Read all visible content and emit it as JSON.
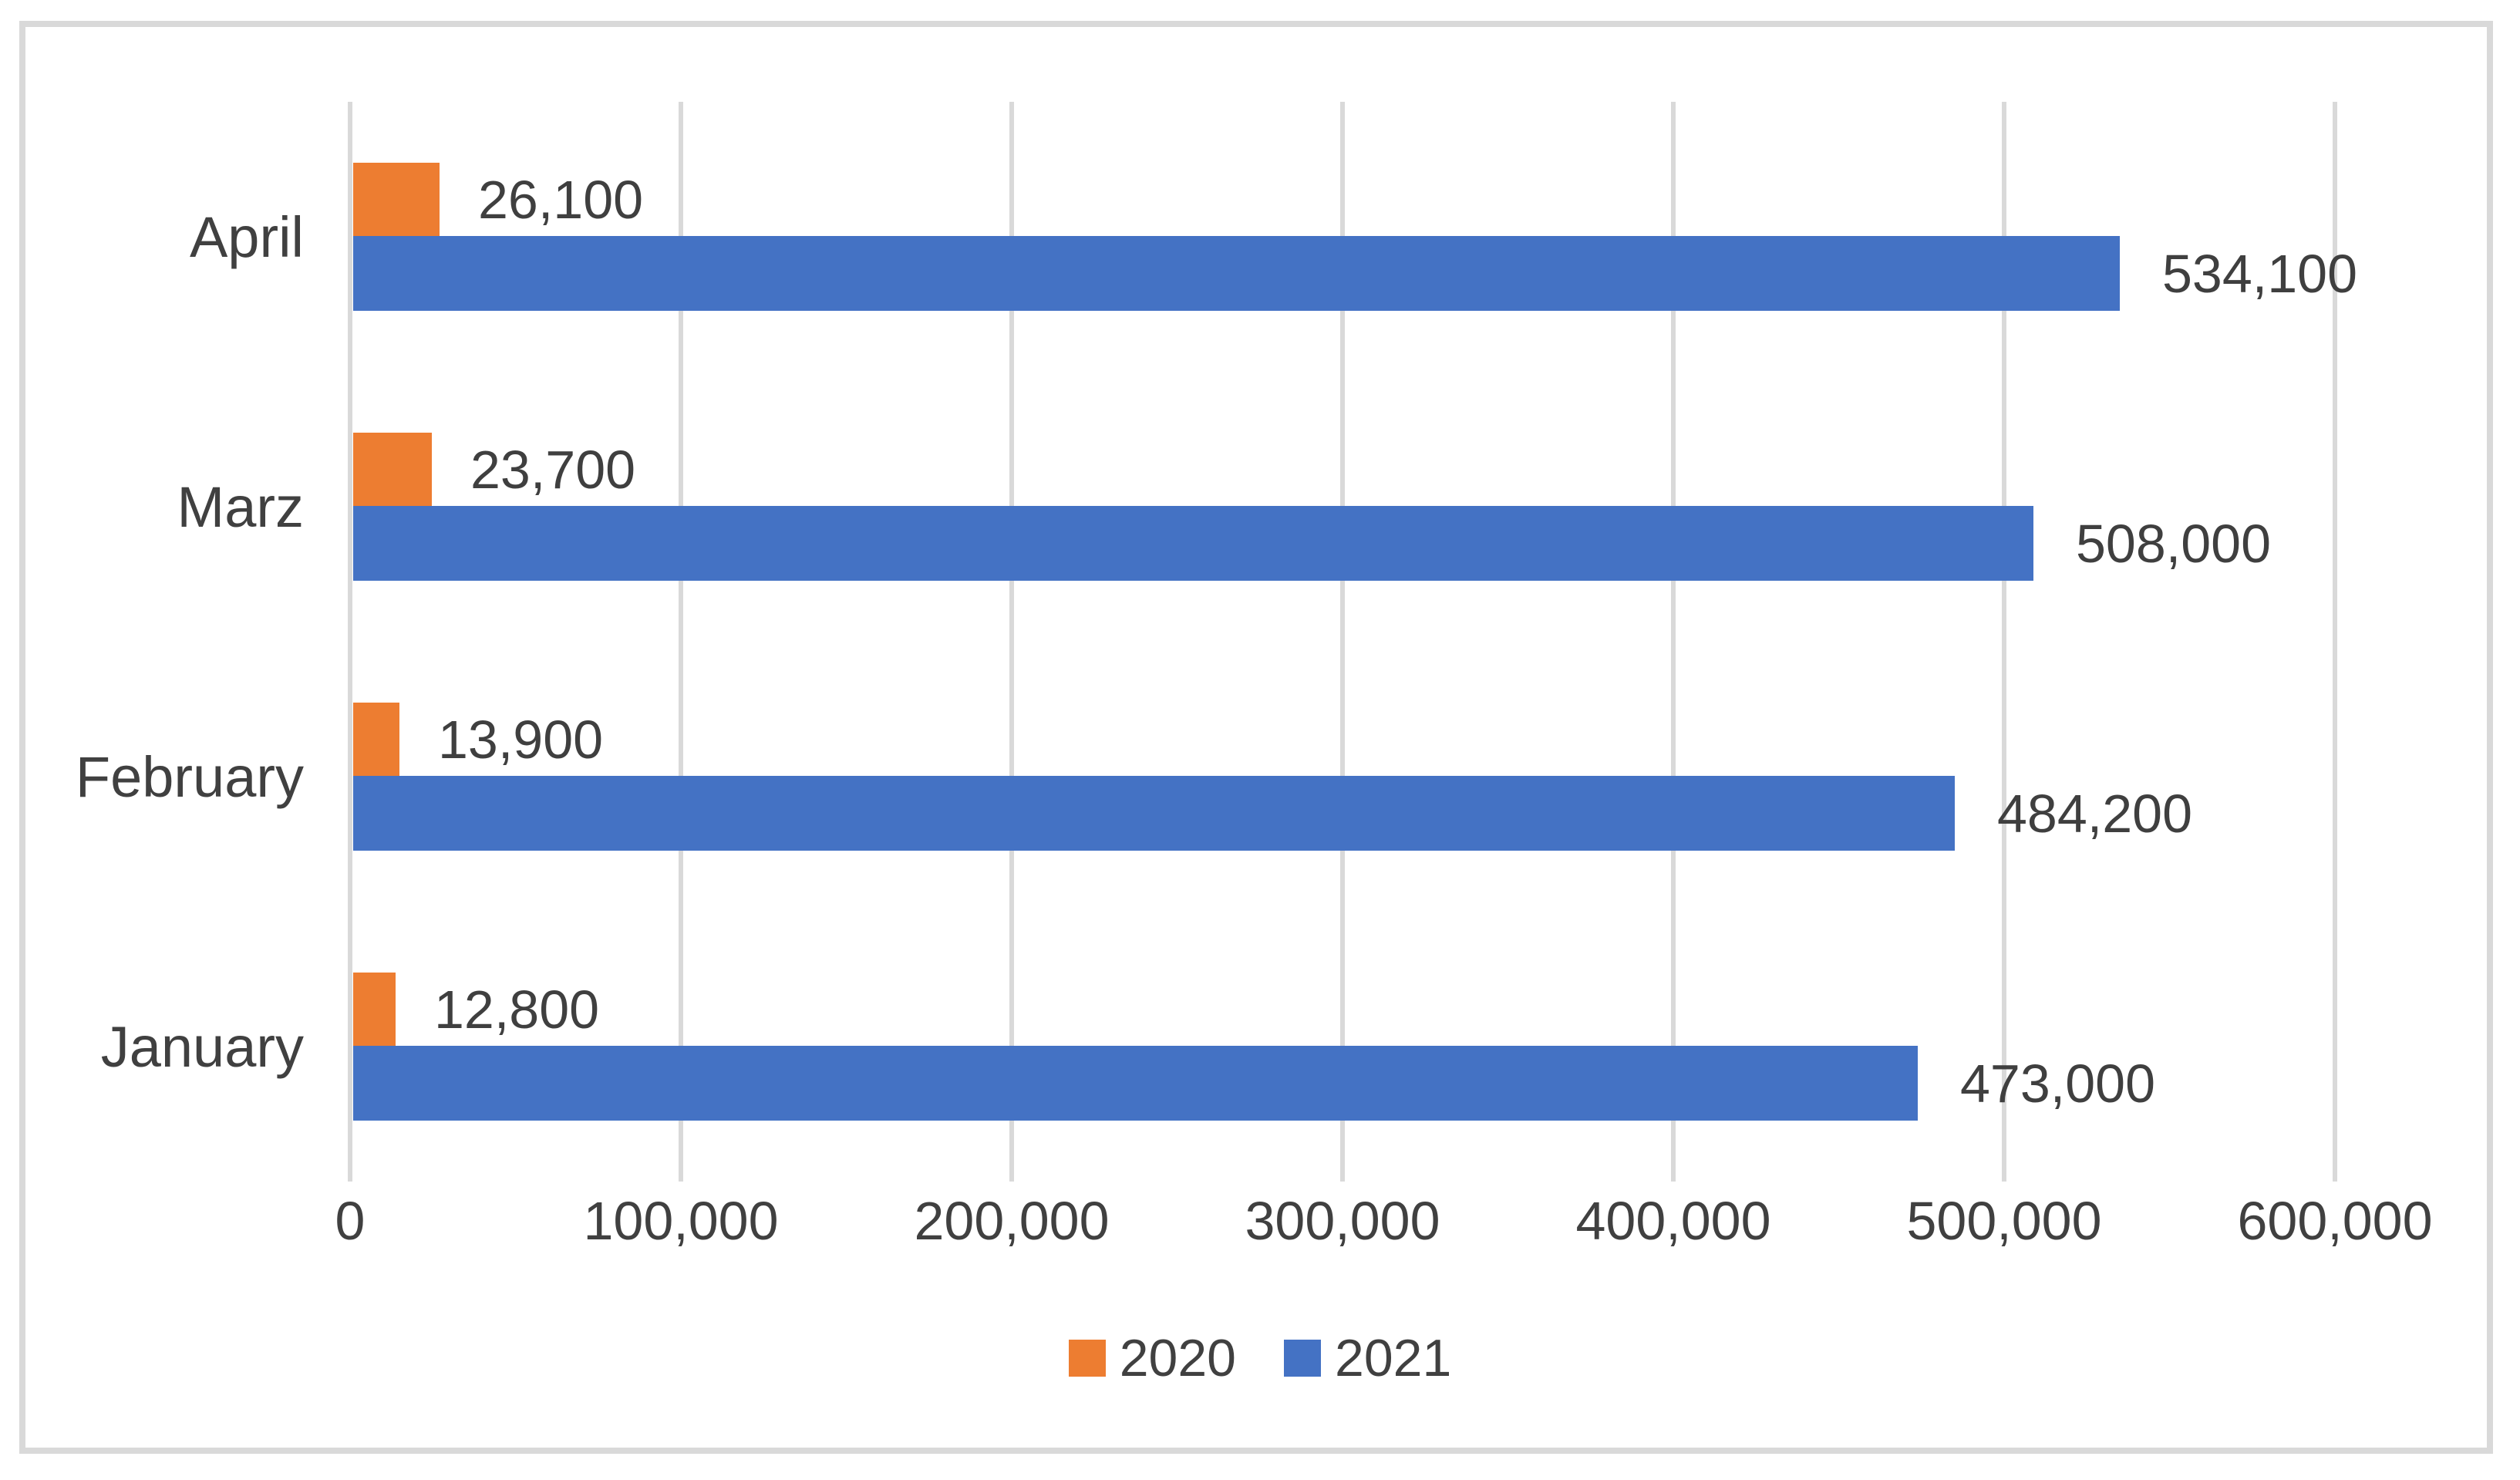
{
  "chart_data": {
    "type": "bar",
    "orientation": "horizontal",
    "title": "",
    "xlabel": "",
    "ylabel": "",
    "categories": [
      "April",
      "Marz",
      "February",
      "January"
    ],
    "category_order": "top-to-bottom",
    "series": [
      {
        "name": "2020",
        "color": "#ED7D31",
        "values": [
          26100,
          23700,
          13900,
          12800
        ],
        "labels": [
          "26,100",
          "23,700",
          "13,900",
          "12,800"
        ]
      },
      {
        "name": "2021",
        "color": "#4472C4",
        "values": [
          534100,
          508000,
          484200,
          473000
        ],
        "labels": [
          "534,100",
          "508,000",
          "484,200",
          "473,000"
        ]
      }
    ],
    "x_axis": {
      "min": 0,
      "max": 600000,
      "tick_interval": 100000,
      "tick_labels": [
        "0",
        "100,000",
        "200,000",
        "300,000",
        "400,000",
        "500,000",
        "600,000"
      ]
    },
    "grid": true,
    "legend_position": "bottom-center",
    "colors": {
      "gridline": "#D9D9D9",
      "frame_border": "#D9D9D9",
      "text": "#404040",
      "background": "#FFFFFF"
    }
  }
}
